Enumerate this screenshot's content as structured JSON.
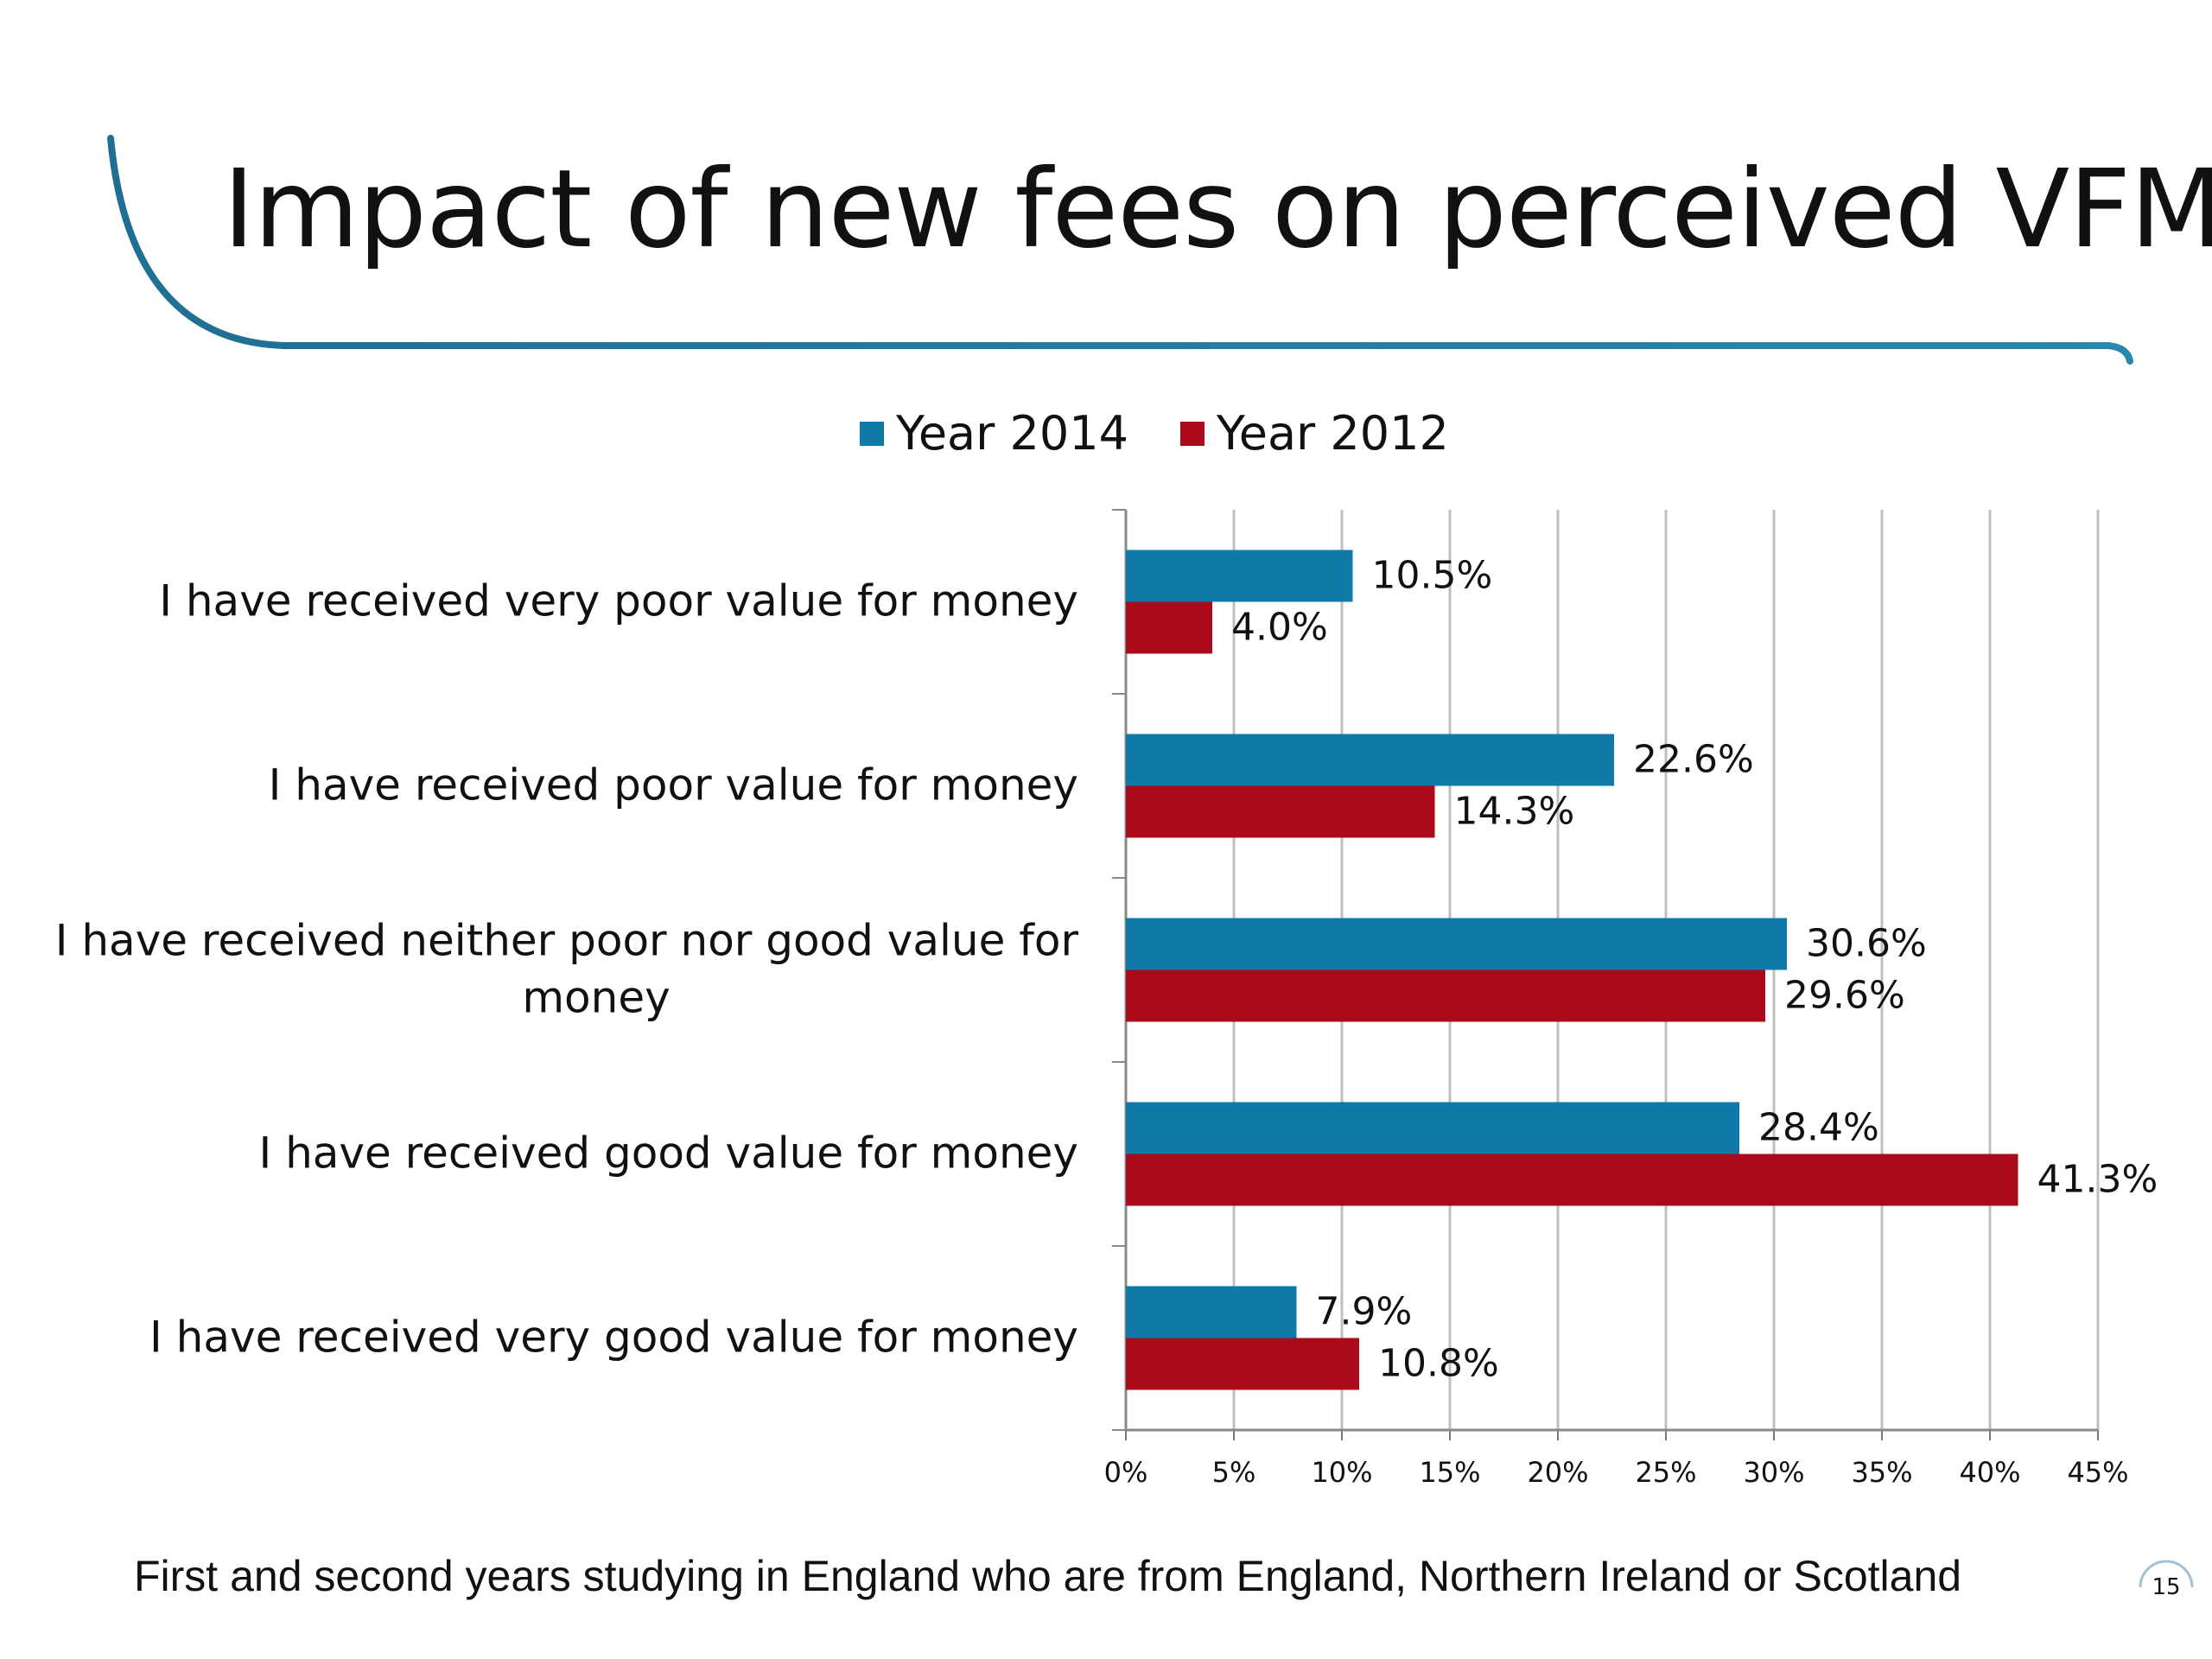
{
  "slide": {
    "title": "Impact of new fees on perceived VFM",
    "footer": "First and second years studying in England who are from England, Northern Ireland or Scotland",
    "page_number": "15"
  },
  "colors": {
    "year2014": "#0f7aa8",
    "year2012": "#aa0a1a",
    "accent_line": "#1f6f93",
    "grid": "#bfbfbf"
  },
  "chart_data": {
    "type": "bar",
    "orientation": "horizontal",
    "categories": [
      "I have received very poor value for money",
      "I have received poor value for money",
      "I have received neither poor nor good value for money",
      "I have received good value for money",
      "I have received very good value for money"
    ],
    "category_lines": [
      [
        "I have received very poor value for money"
      ],
      [
        "I have received poor value for money"
      ],
      [
        "I have received neither poor nor good value for",
        "money"
      ],
      [
        "I have received good value for money"
      ],
      [
        "I have received very good value for money"
      ]
    ],
    "series": [
      {
        "name": "Year 2014",
        "values": [
          10.5,
          22.6,
          30.6,
          28.4,
          7.9
        ],
        "labels": [
          "10.5%",
          "22.6%",
          "30.6%",
          "28.4%",
          "7.9%"
        ]
      },
      {
        "name": "Year 2012",
        "values": [
          4.0,
          14.3,
          29.6,
          41.3,
          10.8
        ],
        "labels": [
          "4.0%",
          "14.3%",
          "29.6%",
          "41.3%",
          "10.8%"
        ]
      }
    ],
    "xlim": [
      0,
      45
    ],
    "xticks": [
      0,
      5,
      10,
      15,
      20,
      25,
      30,
      35,
      40,
      45
    ],
    "xtick_labels": [
      "0%",
      "5%",
      "10%",
      "15%",
      "20%",
      "25%",
      "30%",
      "35%",
      "40%",
      "45%"
    ],
    "grid": true,
    "legend_position": "top"
  }
}
